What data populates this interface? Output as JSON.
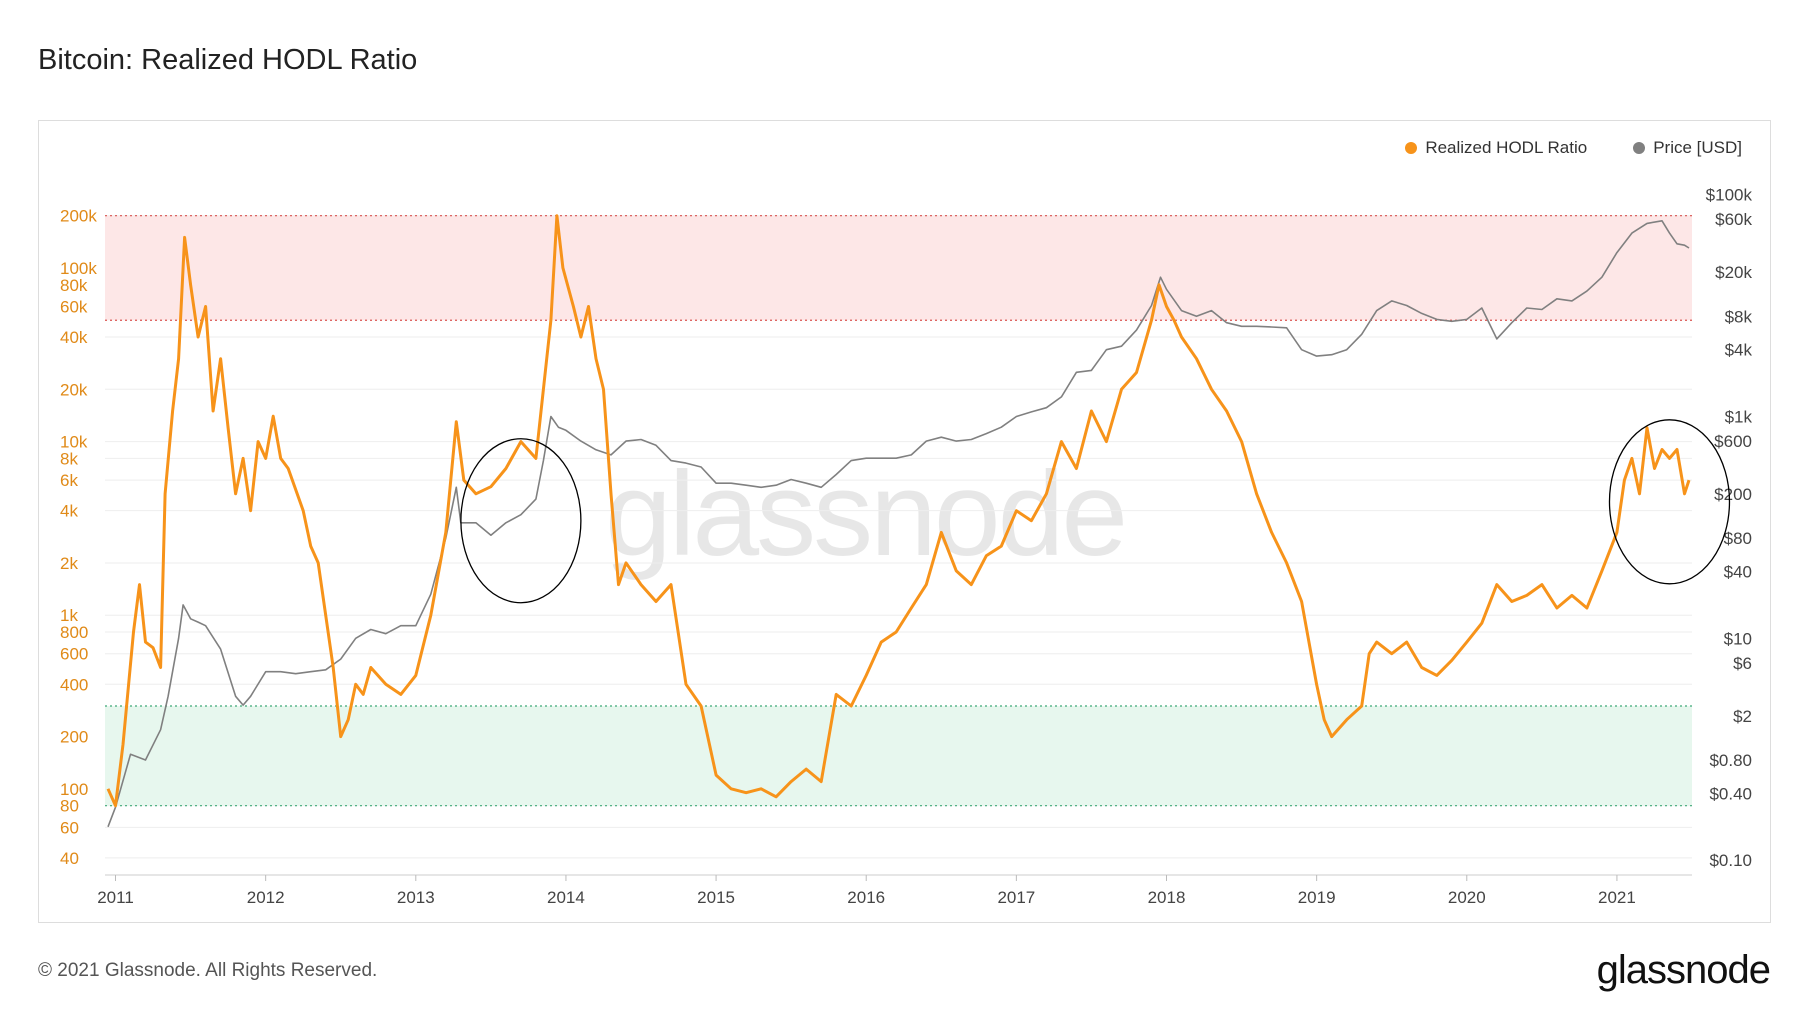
{
  "page": {
    "title": "Bitcoin: Realized HODL Ratio",
    "footer": "© 2021 Glassnode. All Rights Reserved.",
    "brand": "glassnode",
    "watermark": "glassnode"
  },
  "legend": [
    {
      "label": "Realized HODL Ratio",
      "color": "#f7931a"
    },
    {
      "label": "Price [USD]",
      "color": "#808080"
    }
  ],
  "chart_data": {
    "type": "line",
    "title": "Bitcoin: Realized HODL Ratio",
    "x_range": [
      2010.93,
      2021.5
    ],
    "x_ticks": [
      "2011",
      "2012",
      "2013",
      "2014",
      "2015",
      "2016",
      "2017",
      "2018",
      "2019",
      "2020",
      "2021"
    ],
    "left_axis": {
      "scale": "log",
      "range": [
        35,
        210000
      ],
      "ticks": [
        {
          "v": 200000,
          "l": "200k"
        },
        {
          "v": 100000,
          "l": "100k"
        },
        {
          "v": 80000,
          "l": "80k"
        },
        {
          "v": 60000,
          "l": "60k"
        },
        {
          "v": 40000,
          "l": "40k"
        },
        {
          "v": 20000,
          "l": "20k"
        },
        {
          "v": 10000,
          "l": "10k"
        },
        {
          "v": 8000,
          "l": "8k"
        },
        {
          "v": 6000,
          "l": "6k"
        },
        {
          "v": 4000,
          "l": "4k"
        },
        {
          "v": 2000,
          "l": "2k"
        },
        {
          "v": 1000,
          "l": "1k"
        },
        {
          "v": 800,
          "l": "800"
        },
        {
          "v": 600,
          "l": "600"
        },
        {
          "v": 400,
          "l": "400"
        },
        {
          "v": 200,
          "l": "200"
        },
        {
          "v": 100,
          "l": "100"
        },
        {
          "v": 80,
          "l": "80"
        },
        {
          "v": 60,
          "l": "60"
        },
        {
          "v": 40,
          "l": "40"
        }
      ]
    },
    "right_axis": {
      "scale": "log",
      "range": [
        0.085,
        110000
      ],
      "ticks": [
        {
          "v": 100000,
          "l": "$100k"
        },
        {
          "v": 60000,
          "l": "$60k"
        },
        {
          "v": 20000,
          "l": "$20k"
        },
        {
          "v": 8000,
          "l": "$8k"
        },
        {
          "v": 4000,
          "l": "$4k"
        },
        {
          "v": 1000,
          "l": "$1k"
        },
        {
          "v": 600,
          "l": "$600"
        },
        {
          "v": 200,
          "l": "$200"
        },
        {
          "v": 80,
          "l": "$80"
        },
        {
          "v": 40,
          "l": "$40"
        },
        {
          "v": 10,
          "l": "$10"
        },
        {
          "v": 6,
          "l": "$6"
        },
        {
          "v": 2,
          "l": "$2"
        },
        {
          "v": 0.8,
          "l": "$0.80"
        },
        {
          "v": 0.4,
          "l": "$0.40"
        },
        {
          "v": 0.1,
          "l": "$0.10"
        }
      ]
    },
    "bands": [
      {
        "name": "top-band",
        "from": 50000,
        "to": 200000,
        "color": "#fde7e7",
        "line_color": "#d9534f"
      },
      {
        "name": "bottom-band",
        "from": 80,
        "to": 300,
        "color": "#e7f7ee",
        "line_color": "#3fa977"
      }
    ],
    "annotations": [
      {
        "name": "circle-2013",
        "x": 2013.7,
        "y": 3500
      },
      {
        "name": "circle-2021",
        "x": 2021.35,
        "y": 4500
      }
    ],
    "series": [
      {
        "name": "Realized HODL Ratio",
        "axis": "left",
        "color": "#f7931a",
        "points": [
          [
            2010.95,
            100
          ],
          [
            2011.0,
            80
          ],
          [
            2011.05,
            180
          ],
          [
            2011.12,
            800
          ],
          [
            2011.16,
            1500
          ],
          [
            2011.2,
            700
          ],
          [
            2011.25,
            650
          ],
          [
            2011.3,
            500
          ],
          [
            2011.33,
            5000
          ],
          [
            2011.38,
            15000
          ],
          [
            2011.42,
            30000
          ],
          [
            2011.46,
            150000
          ],
          [
            2011.5,
            80000
          ],
          [
            2011.55,
            40000
          ],
          [
            2011.6,
            60000
          ],
          [
            2011.65,
            15000
          ],
          [
            2011.7,
            30000
          ],
          [
            2011.75,
            12000
          ],
          [
            2011.8,
            5000
          ],
          [
            2011.85,
            8000
          ],
          [
            2011.9,
            4000
          ],
          [
            2011.95,
            10000
          ],
          [
            2012.0,
            8000
          ],
          [
            2012.05,
            14000
          ],
          [
            2012.1,
            8000
          ],
          [
            2012.15,
            7000
          ],
          [
            2012.25,
            4000
          ],
          [
            2012.3,
            2500
          ],
          [
            2012.35,
            2000
          ],
          [
            2012.45,
            500
          ],
          [
            2012.5,
            200
          ],
          [
            2012.55,
            250
          ],
          [
            2012.6,
            400
          ],
          [
            2012.65,
            350
          ],
          [
            2012.7,
            500
          ],
          [
            2012.8,
            400
          ],
          [
            2012.9,
            350
          ],
          [
            2013.0,
            450
          ],
          [
            2013.1,
            1000
          ],
          [
            2013.2,
            3000
          ],
          [
            2013.27,
            13000
          ],
          [
            2013.32,
            6000
          ],
          [
            2013.4,
            5000
          ],
          [
            2013.5,
            5500
          ],
          [
            2013.6,
            7000
          ],
          [
            2013.7,
            10000
          ],
          [
            2013.8,
            8000
          ],
          [
            2013.85,
            20000
          ],
          [
            2013.9,
            50000
          ],
          [
            2013.94,
            200000
          ],
          [
            2013.98,
            100000
          ],
          [
            2014.05,
            60000
          ],
          [
            2014.1,
            40000
          ],
          [
            2014.15,
            60000
          ],
          [
            2014.2,
            30000
          ],
          [
            2014.25,
            20000
          ],
          [
            2014.3,
            5000
          ],
          [
            2014.35,
            1500
          ],
          [
            2014.4,
            2000
          ],
          [
            2014.5,
            1500
          ],
          [
            2014.6,
            1200
          ],
          [
            2014.7,
            1500
          ],
          [
            2014.8,
            400
          ],
          [
            2014.9,
            300
          ],
          [
            2015.0,
            120
          ],
          [
            2015.1,
            100
          ],
          [
            2015.2,
            95
          ],
          [
            2015.3,
            100
          ],
          [
            2015.4,
            90
          ],
          [
            2015.5,
            110
          ],
          [
            2015.6,
            130
          ],
          [
            2015.7,
            110
          ],
          [
            2015.8,
            350
          ],
          [
            2015.9,
            300
          ],
          [
            2016.0,
            450
          ],
          [
            2016.1,
            700
          ],
          [
            2016.2,
            800
          ],
          [
            2016.3,
            1100
          ],
          [
            2016.4,
            1500
          ],
          [
            2016.5,
            3000
          ],
          [
            2016.6,
            1800
          ],
          [
            2016.7,
            1500
          ],
          [
            2016.8,
            2200
          ],
          [
            2016.9,
            2500
          ],
          [
            2017.0,
            4000
          ],
          [
            2017.1,
            3500
          ],
          [
            2017.2,
            5000
          ],
          [
            2017.3,
            10000
          ],
          [
            2017.4,
            7000
          ],
          [
            2017.5,
            15000
          ],
          [
            2017.6,
            10000
          ],
          [
            2017.7,
            20000
          ],
          [
            2017.8,
            25000
          ],
          [
            2017.9,
            50000
          ],
          [
            2017.95,
            80000
          ],
          [
            2018.0,
            60000
          ],
          [
            2018.05,
            50000
          ],
          [
            2018.1,
            40000
          ],
          [
            2018.2,
            30000
          ],
          [
            2018.3,
            20000
          ],
          [
            2018.4,
            15000
          ],
          [
            2018.5,
            10000
          ],
          [
            2018.6,
            5000
          ],
          [
            2018.7,
            3000
          ],
          [
            2018.8,
            2000
          ],
          [
            2018.9,
            1200
          ],
          [
            2019.0,
            400
          ],
          [
            2019.05,
            250
          ],
          [
            2019.1,
            200
          ],
          [
            2019.2,
            250
          ],
          [
            2019.3,
            300
          ],
          [
            2019.35,
            600
          ],
          [
            2019.4,
            700
          ],
          [
            2019.5,
            600
          ],
          [
            2019.6,
            700
          ],
          [
            2019.7,
            500
          ],
          [
            2019.8,
            450
          ],
          [
            2019.9,
            550
          ],
          [
            2020.0,
            700
          ],
          [
            2020.1,
            900
          ],
          [
            2020.2,
            1500
          ],
          [
            2020.3,
            1200
          ],
          [
            2020.4,
            1300
          ],
          [
            2020.5,
            1500
          ],
          [
            2020.6,
            1100
          ],
          [
            2020.7,
            1300
          ],
          [
            2020.8,
            1100
          ],
          [
            2020.9,
            1800
          ],
          [
            2021.0,
            3000
          ],
          [
            2021.05,
            6000
          ],
          [
            2021.1,
            8000
          ],
          [
            2021.15,
            5000
          ],
          [
            2021.2,
            12000
          ],
          [
            2021.25,
            7000
          ],
          [
            2021.3,
            9000
          ],
          [
            2021.35,
            8000
          ],
          [
            2021.4,
            9000
          ],
          [
            2021.45,
            5000
          ],
          [
            2021.48,
            6000
          ]
        ]
      },
      {
        "name": "Price [USD]",
        "axis": "right",
        "color": "#808080",
        "points": [
          [
            2010.95,
            0.2
          ],
          [
            2011.0,
            0.3
          ],
          [
            2011.1,
            0.9
          ],
          [
            2011.2,
            0.8
          ],
          [
            2011.3,
            1.5
          ],
          [
            2011.35,
            3
          ],
          [
            2011.42,
            10
          ],
          [
            2011.45,
            20
          ],
          [
            2011.5,
            15
          ],
          [
            2011.55,
            14
          ],
          [
            2011.6,
            13
          ],
          [
            2011.7,
            8
          ],
          [
            2011.8,
            3
          ],
          [
            2011.85,
            2.5
          ],
          [
            2011.9,
            3
          ],
          [
            2012.0,
            5
          ],
          [
            2012.1,
            5
          ],
          [
            2012.2,
            4.8
          ],
          [
            2012.3,
            5
          ],
          [
            2012.4,
            5.2
          ],
          [
            2012.5,
            6.5
          ],
          [
            2012.6,
            10
          ],
          [
            2012.7,
            12
          ],
          [
            2012.8,
            11
          ],
          [
            2012.9,
            13
          ],
          [
            2013.0,
            13
          ],
          [
            2013.1,
            25
          ],
          [
            2013.2,
            80
          ],
          [
            2013.27,
            230
          ],
          [
            2013.3,
            110
          ],
          [
            2013.4,
            110
          ],
          [
            2013.5,
            85
          ],
          [
            2013.6,
            110
          ],
          [
            2013.7,
            130
          ],
          [
            2013.8,
            180
          ],
          [
            2013.85,
            400
          ],
          [
            2013.9,
            1000
          ],
          [
            2013.95,
            800
          ],
          [
            2014.0,
            750
          ],
          [
            2014.1,
            600
          ],
          [
            2014.2,
            500
          ],
          [
            2014.3,
            450
          ],
          [
            2014.4,
            600
          ],
          [
            2014.5,
            620
          ],
          [
            2014.6,
            550
          ],
          [
            2014.7,
            400
          ],
          [
            2014.8,
            380
          ],
          [
            2014.9,
            350
          ],
          [
            2015.0,
            250
          ],
          [
            2015.1,
            250
          ],
          [
            2015.2,
            240
          ],
          [
            2015.3,
            230
          ],
          [
            2015.4,
            240
          ],
          [
            2015.5,
            270
          ],
          [
            2015.6,
            250
          ],
          [
            2015.7,
            230
          ],
          [
            2015.8,
            300
          ],
          [
            2015.9,
            400
          ],
          [
            2016.0,
            420
          ],
          [
            2016.1,
            420
          ],
          [
            2016.2,
            420
          ],
          [
            2016.3,
            450
          ],
          [
            2016.4,
            600
          ],
          [
            2016.5,
            650
          ],
          [
            2016.6,
            600
          ],
          [
            2016.7,
            620
          ],
          [
            2016.8,
            700
          ],
          [
            2016.9,
            800
          ],
          [
            2017.0,
            1000
          ],
          [
            2017.1,
            1100
          ],
          [
            2017.2,
            1200
          ],
          [
            2017.3,
            1500
          ],
          [
            2017.4,
            2500
          ],
          [
            2017.5,
            2600
          ],
          [
            2017.6,
            4000
          ],
          [
            2017.7,
            4300
          ],
          [
            2017.8,
            6000
          ],
          [
            2017.9,
            10000
          ],
          [
            2017.96,
            18000
          ],
          [
            2018.0,
            14000
          ],
          [
            2018.1,
            9000
          ],
          [
            2018.2,
            8000
          ],
          [
            2018.3,
            9000
          ],
          [
            2018.4,
            7000
          ],
          [
            2018.5,
            6500
          ],
          [
            2018.6,
            6500
          ],
          [
            2018.7,
            6400
          ],
          [
            2018.8,
            6300
          ],
          [
            2018.9,
            4000
          ],
          [
            2019.0,
            3500
          ],
          [
            2019.1,
            3600
          ],
          [
            2019.2,
            4000
          ],
          [
            2019.3,
            5500
          ],
          [
            2019.4,
            9000
          ],
          [
            2019.5,
            11000
          ],
          [
            2019.6,
            10000
          ],
          [
            2019.7,
            8500
          ],
          [
            2019.8,
            7500
          ],
          [
            2019.9,
            7200
          ],
          [
            2020.0,
            7500
          ],
          [
            2020.1,
            9500
          ],
          [
            2020.2,
            5000
          ],
          [
            2020.3,
            7000
          ],
          [
            2020.4,
            9500
          ],
          [
            2020.5,
            9200
          ],
          [
            2020.6,
            11500
          ],
          [
            2020.7,
            11000
          ],
          [
            2020.8,
            13500
          ],
          [
            2020.9,
            18000
          ],
          [
            2021.0,
            30000
          ],
          [
            2021.1,
            45000
          ],
          [
            2021.2,
            55000
          ],
          [
            2021.3,
            58000
          ],
          [
            2021.35,
            45000
          ],
          [
            2021.4,
            36000
          ],
          [
            2021.45,
            35000
          ],
          [
            2021.48,
            33000
          ]
        ]
      }
    ]
  }
}
